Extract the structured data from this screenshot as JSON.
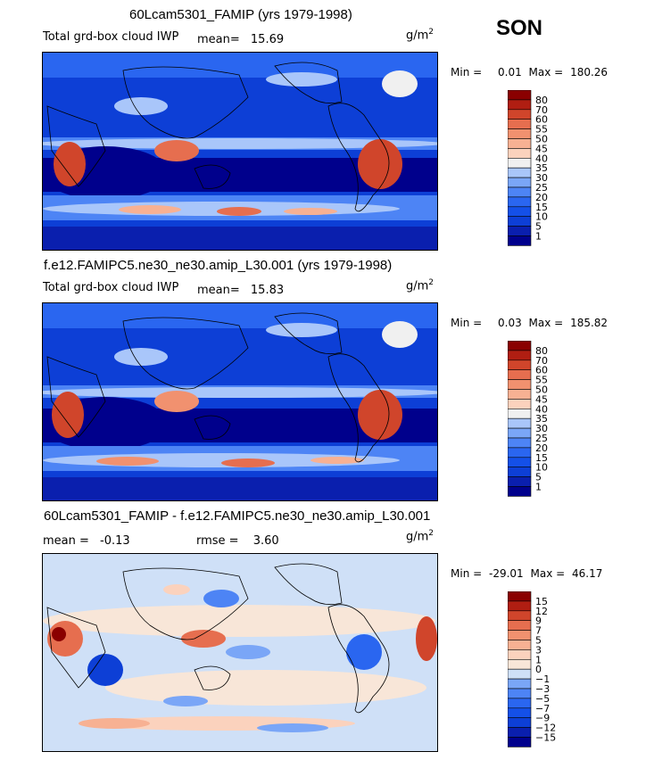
{
  "season": "SON",
  "chart_data": [
    {
      "type": "heatmap",
      "title": "60Lcam5301_FAMIP (yrs 1979-1998)",
      "field": "Total grd-box cloud IWP",
      "mean_label": "mean=",
      "mean": "15.69",
      "units": "g/m",
      "units_exp": "2",
      "min_label": "Min =",
      "min": "0.01",
      "max_label": "Max =",
      "max": "180.26",
      "levels": [
        "1",
        "5",
        "10",
        "15",
        "20",
        "25",
        "30",
        "35",
        "40",
        "45",
        "50",
        "55",
        "60",
        "70",
        "80"
      ],
      "colors": [
        "#00008c",
        "#0a1fae",
        "#0d3fd6",
        "#1450e8",
        "#2a66f0",
        "#4d84f5",
        "#7aa6f7",
        "#a9c6fa",
        "#f0f0f0",
        "#fbd2bd",
        "#f7b193",
        "#f1916f",
        "#e66e4f",
        "#d0452b",
        "#b01e12",
        "#8a0000"
      ]
    },
    {
      "type": "heatmap",
      "title": "f.e12.FAMIPC5.ne30_ne30.amip_L30.001 (yrs 1979-1998)",
      "field": "Total grd-box cloud IWP",
      "mean_label": "mean=",
      "mean": "15.83",
      "units": "g/m",
      "units_exp": "2",
      "min_label": "Min =",
      "min": "0.03",
      "max_label": "Max =",
      "max": "185.82",
      "levels": [
        "1",
        "5",
        "10",
        "15",
        "20",
        "25",
        "30",
        "35",
        "40",
        "45",
        "50",
        "55",
        "60",
        "70",
        "80"
      ],
      "colors": [
        "#00008c",
        "#0a1fae",
        "#0d3fd6",
        "#1450e8",
        "#2a66f0",
        "#4d84f5",
        "#7aa6f7",
        "#a9c6fa",
        "#f0f0f0",
        "#fbd2bd",
        "#f7b193",
        "#f1916f",
        "#e66e4f",
        "#d0452b",
        "#b01e12",
        "#8a0000"
      ]
    },
    {
      "type": "heatmap",
      "title": "60Lcam5301_FAMIP - f.e12.FAMIPC5.ne30_ne30.amip_L30.001",
      "mean_label": "mean =",
      "mean": "-0.13",
      "rmse_label": "rmse =",
      "rmse": "3.60",
      "units": "g/m",
      "units_exp": "2",
      "min_label": "Min =",
      "min": "-29.01",
      "max_label": "Max =",
      "max": "46.17",
      "levels": [
        "-15",
        "-12",
        "-9",
        "-7",
        "-5",
        "-3",
        "-1",
        "0",
        "1",
        "3",
        "5",
        "7",
        "9",
        "12",
        "15"
      ],
      "colors": [
        "#00008c",
        "#0a1fae",
        "#0d3fd6",
        "#1450e8",
        "#2a66f0",
        "#4d84f5",
        "#7aa6f7",
        "#cfe0f7",
        "#f8e6d8",
        "#fbd2bd",
        "#f7b193",
        "#f1916f",
        "#e66e4f",
        "#d0452b",
        "#b01e12",
        "#8a0000"
      ]
    }
  ]
}
